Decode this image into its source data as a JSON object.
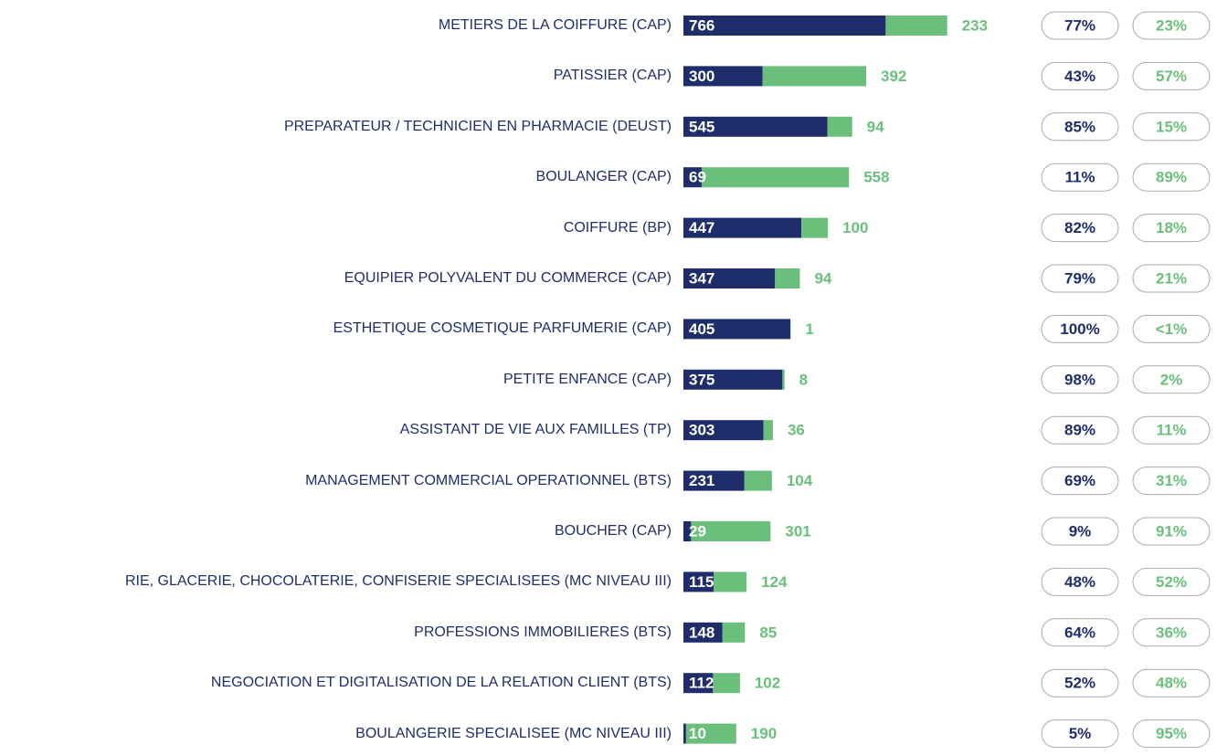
{
  "chart_data": {
    "type": "bar",
    "orientation": "horizontal",
    "stacked": true,
    "categories": [
      "METIERS DE LA COIFFURE (CAP)",
      "PATISSIER (CAP)",
      "PREPARATEUR / TECHNICIEN EN PHARMACIE (DEUST)",
      "BOULANGER (CAP)",
      "COIFFURE (BP)",
      "EQUIPIER POLYVALENT DU COMMERCE (CAP)",
      "ESTHETIQUE COSMETIQUE PARFUMERIE (CAP)",
      "PETITE ENFANCE (CAP)",
      "ASSISTANT DE VIE AUX FAMILLES (TP)",
      "MANAGEMENT COMMERCIAL OPERATIONNEL (BTS)",
      "BOUCHER (CAP)",
      "RIE, GLACERIE, CHOCOLATERIE, CONFISERIE SPECIALISEES (MC NIVEAU III)",
      "PROFESSIONS IMMOBILIERES (BTS)",
      "NEGOCIATION ET DIGITALISATION DE LA RELATION CLIENT (BTS)",
      "BOULANGERIE SPECIALISEE (MC NIVEAU III)"
    ],
    "series": [
      {
        "color": "#1f2e6b",
        "values": [
          766,
          300,
          545,
          69,
          447,
          347,
          405,
          375,
          303,
          231,
          29,
          115,
          148,
          112,
          10
        ]
      },
      {
        "color": "#6abf7b",
        "values": [
          233,
          392,
          94,
          558,
          100,
          94,
          1,
          8,
          36,
          104,
          301,
          124,
          85,
          102,
          190
        ]
      }
    ],
    "shares": [
      {
        "color": "#1f2e6b",
        "values": [
          77,
          43,
          85,
          11,
          82,
          79,
          100,
          98,
          89,
          69,
          9,
          48,
          64,
          52,
          5
        ],
        "value_labels": [
          "77%",
          "43%",
          "85%",
          "11%",
          "82%",
          "79%",
          "100%",
          "98%",
          "89%",
          "69%",
          "9%",
          "48%",
          "64%",
          "52%",
          "5%"
        ]
      },
      {
        "color": "#6abf7b",
        "values": [
          23,
          57,
          15,
          89,
          18,
          21,
          0.25,
          2,
          11,
          31,
          91,
          52,
          36,
          48,
          95
        ],
        "value_labels": [
          "23%",
          "57%",
          "15%",
          "89%",
          "18%",
          "21%",
          "<1%",
          "2%",
          "11%",
          "31%",
          "91%",
          "52%",
          "36%",
          "48%",
          "95%"
        ]
      }
    ]
  }
}
